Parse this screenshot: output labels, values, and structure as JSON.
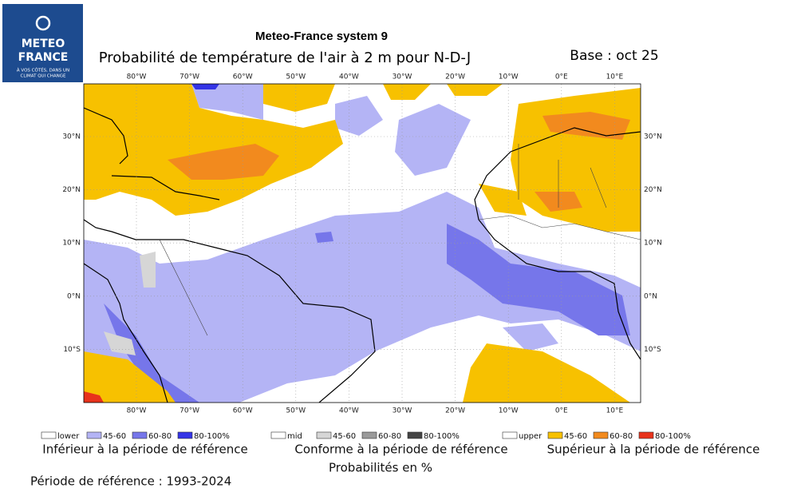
{
  "logo": {
    "line1": "METEO",
    "line2": "FRANCE",
    "tagline1": "À VOS CÔTÉS, DANS UN",
    "tagline2": "CLIMAT QUI CHANGE"
  },
  "header": {
    "title": "Meteo-France system 9",
    "subtitle": "Probabilité de température de l'air à 2 m pour N-D-J",
    "base": "Base : oct 25"
  },
  "map": {
    "lon_labels": [
      "80°W",
      "70°W",
      "60°W",
      "50°W",
      "40°W",
      "30°W",
      "20°W",
      "10°W",
      "0°E",
      "10°E"
    ],
    "lat_labels": [
      "30°N",
      "20°N",
      "10°N",
      "0°N",
      "10°S"
    ]
  },
  "legend": {
    "groups": [
      {
        "items": [
          {
            "label": "lower",
            "color": "#ffffff"
          },
          {
            "label": "45-60",
            "color": "#b4b4f5"
          },
          {
            "label": "60-80",
            "color": "#7676ea"
          },
          {
            "label": "80-100%",
            "color": "#3434e6"
          }
        ],
        "caption": "Inférieur à la période de référence"
      },
      {
        "items": [
          {
            "label": "mid",
            "color": "#ffffff"
          },
          {
            "label": "45-60",
            "color": "#d6d6d6"
          },
          {
            "label": "60-80",
            "color": "#9a9a9a"
          },
          {
            "label": "80-100%",
            "color": "#444444"
          }
        ],
        "caption": "Conforme à la période de référence"
      },
      {
        "items": [
          {
            "label": "upper",
            "color": "#ffffff"
          },
          {
            "label": "45-60",
            "color": "#f7c100"
          },
          {
            "label": "60-80",
            "color": "#f28a1e"
          },
          {
            "label": "80-100%",
            "color": "#e8331c"
          }
        ],
        "caption": "Supérieur à la période de référence"
      }
    ]
  },
  "footer": {
    "probabilities": "Probabilités en %",
    "reference": "Période de référence : 1993-2024"
  }
}
